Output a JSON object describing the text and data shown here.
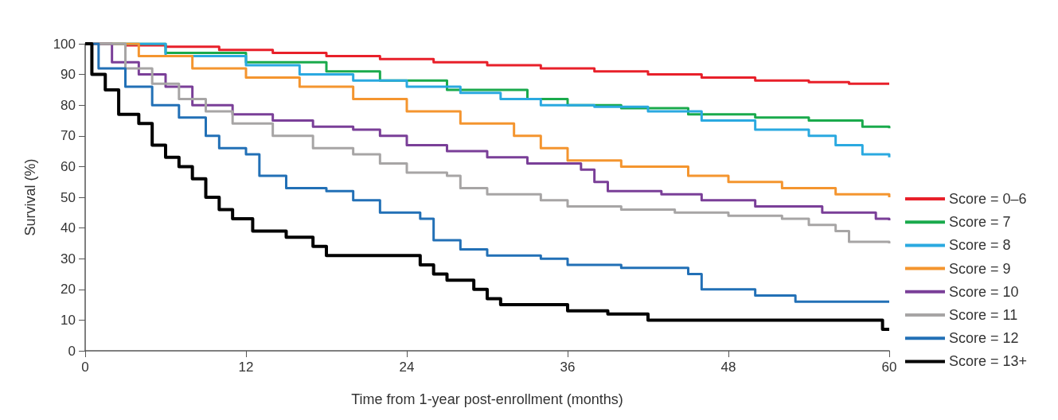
{
  "chart_data": {
    "type": "step",
    "xlabel": "Time from 1-year post-enrollment (months)",
    "ylabel": "Survival (%)",
    "xlim": [
      0,
      60
    ],
    "xticks": [
      0,
      12,
      24,
      36,
      48,
      60
    ],
    "ylim": [
      0,
      100
    ],
    "yticks": [
      0,
      10,
      20,
      30,
      40,
      50,
      60,
      70,
      80,
      90,
      100
    ],
    "grid": false,
    "legend": "right",
    "marker": "none",
    "line_style": "solid",
    "series": [
      {
        "name": "Score = 0–6",
        "color": "#e8202a",
        "x": [
          0,
          3,
          6,
          10,
          14,
          18,
          22,
          26,
          30,
          34,
          38,
          42,
          46,
          50,
          54,
          57,
          60
        ],
        "values": [
          100,
          99.5,
          99,
          98,
          97,
          96,
          95,
          94,
          93,
          92,
          91,
          90,
          89,
          88,
          87.5,
          87,
          87
        ]
      },
      {
        "name": "Score = 7",
        "color": "#1aaa4c",
        "x": [
          0,
          6,
          12,
          18,
          22,
          27,
          33,
          36,
          40,
          45,
          50,
          54,
          58,
          60
        ],
        "values": [
          100,
          97,
          94,
          91,
          88,
          85,
          82,
          80,
          79,
          77,
          76,
          75,
          73,
          72.5
        ]
      },
      {
        "name": "Score = 8",
        "color": "#2aa9e0",
        "x": [
          0,
          6,
          12,
          16,
          20,
          24,
          28,
          31,
          34,
          38,
          42,
          46,
          50,
          54,
          56,
          58,
          60
        ],
        "values": [
          100,
          96,
          93,
          90,
          88,
          86,
          84,
          82,
          80,
          79.5,
          78,
          75,
          72,
          70,
          67,
          64,
          63
        ]
      },
      {
        "name": "Score = 9",
        "color": "#f4952f",
        "x": [
          0,
          4,
          8,
          12,
          16,
          20,
          24,
          28,
          32,
          34,
          36,
          40,
          45,
          48,
          52,
          56,
          60
        ],
        "values": [
          100,
          96,
          92,
          89,
          86,
          82,
          78,
          74,
          70,
          66,
          62,
          60,
          57,
          55,
          53,
          51,
          50
        ]
      },
      {
        "name": "Score = 10",
        "color": "#7a3f98",
        "x": [
          0,
          2,
          4,
          6,
          8,
          11,
          14,
          17,
          20,
          22,
          24,
          27,
          30,
          33,
          37,
          38,
          39,
          43,
          46,
          50,
          55,
          59,
          60
        ],
        "values": [
          100,
          94,
          90,
          86,
          80,
          77,
          75,
          73,
          72,
          70,
          67,
          65,
          63,
          61,
          59,
          55,
          52,
          51,
          49,
          47,
          45,
          43,
          42.5
        ]
      },
      {
        "name": "Score = 11",
        "color": "#a7a5a5",
        "x": [
          0,
          3,
          5,
          7,
          9,
          11,
          14,
          17,
          20,
          22,
          24,
          27,
          28,
          30,
          34,
          36,
          40,
          44,
          48,
          52,
          54,
          56,
          57,
          60
        ],
        "values": [
          100,
          92,
          87,
          82,
          78,
          74,
          70,
          66,
          64,
          61,
          58,
          57,
          53,
          51,
          49,
          47,
          46,
          45,
          44,
          43,
          41,
          39,
          35.5,
          35
        ]
      },
      {
        "name": "Score = 12",
        "color": "#2270b6",
        "x": [
          0,
          1,
          3,
          5,
          7,
          9,
          10,
          12,
          13,
          15,
          18,
          20,
          22,
          25,
          26,
          28,
          30,
          34,
          36,
          40,
          45,
          46,
          50,
          53,
          60
        ],
        "values": [
          100,
          92,
          86,
          80,
          76,
          70,
          66,
          64,
          57,
          53,
          52,
          49,
          45,
          43,
          36,
          33,
          31,
          30,
          28,
          27,
          25,
          20,
          18,
          16,
          16
        ]
      },
      {
        "name": "Score = 13+",
        "color": "#000000",
        "x": [
          0,
          0.5,
          1.5,
          2.5,
          4,
          5,
          6,
          7,
          8,
          9,
          10,
          11,
          12.5,
          15,
          17,
          18,
          25,
          26,
          27,
          29,
          30,
          31,
          36,
          39,
          42,
          46,
          59.5,
          60
        ],
        "values": [
          100,
          90,
          85,
          77,
          74,
          67,
          63,
          60,
          56,
          50,
          46,
          43,
          39,
          37,
          34,
          31,
          28,
          25,
          23,
          20,
          17,
          15,
          13,
          12,
          10,
          10,
          7,
          7
        ]
      }
    ]
  }
}
